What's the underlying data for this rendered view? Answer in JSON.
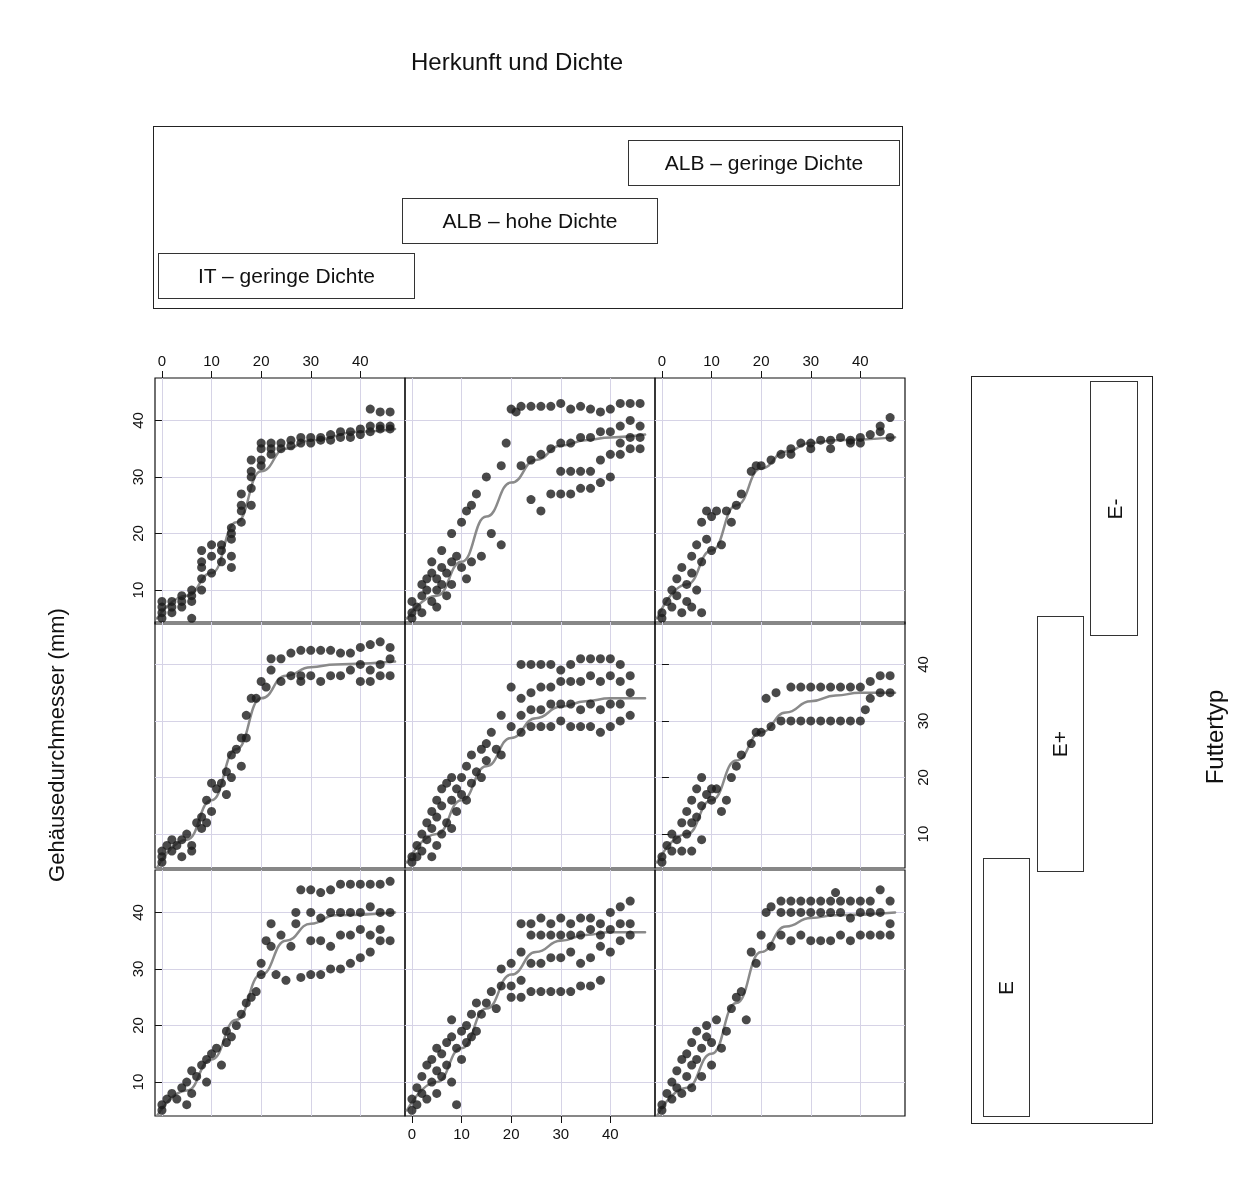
{
  "chart_data": [
    {
      "type": "other",
      "title": "Herkunft und Dichte",
      "annotations": [
        "IT – geringe Dichte",
        "ALB – hohe Dichte",
        "ALB – geringe Dichte"
      ]
    },
    {
      "type": "scatter",
      "xlim": [
        -1.4,
        49
      ],
      "ylim": [
        4,
        47.5
      ],
      "xticks": [
        0,
        10,
        20,
        30,
        40
      ],
      "yticks": [
        10,
        20,
        30,
        40
      ],
      "grid": true,
      "series": [
        {
          "type": "scatter",
          "marker": "circle",
          "color": "#1c1c1c",
          "x": [
            0,
            0,
            0,
            0,
            2,
            2,
            2,
            4,
            4,
            4,
            6,
            6,
            6,
            6,
            8,
            8,
            8,
            8,
            8,
            10,
            10,
            10,
            12,
            12,
            12,
            14,
            14,
            14,
            14,
            14,
            16,
            16,
            16,
            16,
            18,
            18,
            18,
            18,
            18,
            20,
            20,
            20,
            20,
            22,
            22,
            22,
            24,
            24,
            26,
            26,
            28,
            28,
            30,
            30,
            32,
            32,
            34,
            34,
            36,
            36,
            38,
            38,
            40,
            40,
            42,
            42,
            42,
            44,
            44,
            44,
            46,
            46,
            46
          ],
          "values": [
            5,
            6,
            7,
            8,
            6,
            7,
            8,
            8,
            9,
            7,
            9,
            10,
            5,
            8,
            10,
            12,
            14,
            15,
            17,
            16,
            18,
            13,
            17,
            18,
            15,
            19,
            20,
            14,
            16,
            21,
            22,
            24,
            25,
            27,
            25,
            28,
            31,
            30,
            33,
            35,
            33,
            32,
            36,
            36,
            34,
            35,
            36,
            35,
            36.5,
            35.5,
            37,
            36,
            37,
            36,
            37,
            36.5,
            37.5,
            36.5,
            38,
            37,
            38,
            37,
            38.5,
            37.5,
            38,
            39,
            42,
            39,
            41.5,
            38.5,
            39,
            41.5,
            38.5
          ]
        },
        {
          "type": "line",
          "marker": "none",
          "color": "#8a8a8a",
          "x": [
            -1,
            5,
            10,
            15,
            20,
            25,
            30,
            40,
            47
          ],
          "values": [
            5,
            9,
            13,
            22,
            31,
            35,
            36.5,
            38,
            38.5
          ]
        }
      ]
    },
    {
      "type": "scatter",
      "xlim": [
        -1.4,
        49
      ],
      "ylim": [
        4,
        47.5
      ],
      "xticks": [
        0,
        10,
        20,
        30,
        40
      ],
      "yticks": [
        10,
        20,
        30,
        40
      ],
      "grid": true,
      "tick_labels": false,
      "series": [
        {
          "type": "scatter",
          "marker": "circle",
          "color": "#1c1c1c",
          "x": [
            0,
            0,
            0,
            1,
            2,
            2,
            2,
            3,
            3,
            4,
            4,
            4,
            5,
            5,
            5,
            6,
            6,
            6,
            7,
            7,
            8,
            8,
            8,
            9,
            10,
            10,
            11,
            11,
            12,
            12,
            13,
            14,
            15,
            16,
            18,
            18,
            19,
            20,
            21,
            22,
            22,
            24,
            24,
            24,
            26,
            26,
            26,
            28,
            28,
            28,
            30,
            30,
            30,
            30,
            32,
            32,
            32,
            32,
            34,
            34,
            34,
            34,
            36,
            36,
            36,
            36,
            38,
            38,
            38,
            38,
            40,
            40,
            40,
            40,
            42,
            42,
            42,
            42,
            44,
            44,
            44,
            44,
            46,
            46,
            46,
            46
          ],
          "values": [
            5,
            6,
            8,
            7,
            9,
            11,
            6,
            12,
            10,
            8,
            13,
            15,
            7,
            10,
            12,
            14,
            11,
            17,
            13,
            9,
            15,
            11,
            20,
            16,
            14,
            22,
            12,
            24,
            25,
            15,
            27,
            16,
            30,
            20,
            18,
            32,
            36,
            42,
            41.5,
            42.5,
            32,
            42.5,
            33,
            26,
            42.5,
            34,
            24,
            42.5,
            35,
            27,
            43,
            36,
            31,
            27,
            42,
            36,
            31,
            27,
            42.5,
            37,
            31,
            28,
            42,
            37,
            31,
            28,
            41.5,
            38,
            33,
            29,
            42,
            38,
            34,
            30,
            43,
            39,
            36,
            34,
            43,
            40,
            37,
            35,
            43,
            39,
            37,
            35
          ]
        },
        {
          "type": "line",
          "marker": "none",
          "color": "#8a8a8a",
          "x": [
            -1,
            5,
            10,
            15,
            20,
            25,
            30,
            35,
            40,
            47
          ],
          "values": [
            5,
            9,
            15,
            23,
            29,
            33,
            35.5,
            36.5,
            37,
            37.5
          ]
        }
      ]
    },
    {
      "type": "scatter",
      "xlim": [
        -1.4,
        49
      ],
      "ylim": [
        4,
        47.5
      ],
      "xticks": [
        0,
        10,
        20,
        30,
        40
      ],
      "yticks": [
        10,
        20,
        30,
        40
      ],
      "grid": true,
      "tick_labels": "x",
      "series": [
        {
          "type": "scatter",
          "marker": "circle",
          "color": "#1c1c1c",
          "x": [
            0,
            0,
            1,
            2,
            2,
            3,
            3,
            4,
            4,
            5,
            5,
            6,
            6,
            6,
            7,
            7,
            8,
            8,
            8,
            9,
            9,
            10,
            10,
            11,
            12,
            13,
            14,
            15,
            16,
            18,
            19,
            20,
            22,
            24,
            26,
            26,
            28,
            30,
            30,
            32,
            34,
            34,
            36,
            38,
            38,
            40,
            40,
            42,
            44,
            44,
            46,
            46
          ],
          "values": [
            6,
            5,
            8,
            10,
            7,
            12,
            9,
            6,
            14,
            11,
            8,
            16,
            13,
            7,
            18,
            10,
            22,
            15,
            6,
            24,
            19,
            23,
            17,
            24,
            18,
            24,
            22,
            25,
            27,
            31,
            32,
            32,
            33,
            34,
            35,
            34,
            36,
            36,
            35,
            36.5,
            36.5,
            35,
            37,
            36.5,
            36,
            37,
            36,
            37.5,
            38,
            39,
            40.5,
            37
          ]
        },
        {
          "type": "line",
          "marker": "none",
          "color": "#8a8a8a",
          "x": [
            -1,
            5,
            10,
            15,
            20,
            25,
            30,
            35,
            47
          ],
          "values": [
            5,
            11,
            17,
            25,
            31.5,
            34.5,
            36,
            36.5,
            37
          ]
        }
      ]
    },
    {
      "type": "scatter",
      "xlim": [
        -1.4,
        49
      ],
      "ylim": [
        4,
        47.5
      ],
      "xticks": [
        0,
        10,
        20,
        30,
        40
      ],
      "yticks": [
        10,
        20,
        30,
        40
      ],
      "grid": true,
      "tick_labels": false,
      "ylabel": "Gehäusedurchmesser (mm)",
      "series": [
        {
          "type": "scatter",
          "marker": "circle",
          "color": "#1c1c1c",
          "x": [
            0,
            0,
            0,
            1,
            2,
            2,
            3,
            4,
            4,
            5,
            6,
            6,
            7,
            8,
            8,
            9,
            9,
            10,
            10,
            11,
            12,
            13,
            13,
            14,
            14,
            15,
            16,
            16,
            17,
            17,
            18,
            19,
            20,
            21,
            22,
            22,
            24,
            24,
            26,
            26,
            28,
            28,
            28,
            30,
            30,
            32,
            32,
            34,
            34,
            36,
            36,
            38,
            38,
            40,
            40,
            40,
            42,
            42,
            42,
            44,
            44,
            44,
            46,
            46,
            46
          ],
          "values": [
            5,
            6,
            7,
            8,
            9,
            7,
            8,
            9,
            6,
            10,
            8,
            7,
            12,
            11,
            13,
            16,
            12,
            14,
            19,
            18,
            19,
            21,
            17,
            24,
            20,
            25,
            27,
            22,
            27,
            31,
            34,
            34,
            37,
            36,
            41,
            39,
            41,
            37,
            42,
            38,
            42.5,
            38,
            37,
            42.5,
            38,
            42.5,
            37,
            42.5,
            38,
            42,
            38,
            42,
            39,
            43,
            40,
            37,
            43.5,
            39,
            37,
            44,
            40,
            38,
            43,
            41,
            38
          ]
        },
        {
          "type": "line",
          "marker": "none",
          "color": "#8a8a8a",
          "x": [
            -1,
            5,
            10,
            15,
            20,
            25,
            30,
            35,
            47
          ],
          "values": [
            4,
            9,
            16,
            25,
            34,
            38,
            39.5,
            40,
            40.5
          ]
        }
      ]
    },
    {
      "type": "scatter",
      "xlim": [
        -1.4,
        49
      ],
      "ylim": [
        4,
        47.5
      ],
      "xticks": [
        0,
        10,
        20,
        30,
        40
      ],
      "yticks": [
        10,
        20,
        30,
        40
      ],
      "grid": true,
      "tick_labels": false,
      "series": [
        {
          "type": "scatter",
          "marker": "circle",
          "color": "#1c1c1c",
          "x": [
            0,
            0,
            1,
            1,
            2,
            2,
            3,
            3,
            4,
            4,
            4,
            5,
            5,
            5,
            6,
            6,
            6,
            7,
            7,
            8,
            8,
            8,
            9,
            9,
            10,
            10,
            11,
            11,
            12,
            12,
            13,
            14,
            14,
            15,
            15,
            16,
            17,
            18,
            18,
            20,
            20,
            22,
            22,
            22,
            22,
            24,
            24,
            24,
            24,
            26,
            26,
            26,
            26,
            28,
            28,
            28,
            28,
            30,
            30,
            30,
            30,
            32,
            32,
            32,
            32,
            34,
            34,
            34,
            34,
            36,
            36,
            36,
            36,
            38,
            38,
            38,
            38,
            40,
            40,
            40,
            40,
            42,
            42,
            42,
            42,
            44,
            44,
            44
          ],
          "values": [
            5,
            6,
            8,
            6,
            10,
            7,
            12,
            9,
            11,
            14,
            6,
            16,
            13,
            8,
            18,
            15,
            10,
            19,
            12,
            20,
            16,
            11,
            18,
            14,
            20,
            17,
            22,
            16,
            24,
            19,
            21,
            25,
            20,
            26,
            23,
            28,
            25,
            24,
            31,
            36,
            29,
            40,
            34,
            31,
            28,
            40,
            35,
            32,
            29,
            40,
            36,
            32,
            29,
            40,
            36,
            33,
            29,
            39,
            37,
            33,
            30,
            40,
            37,
            33,
            29,
            41,
            37,
            32,
            29,
            41,
            38,
            33,
            29,
            41,
            37,
            32,
            28,
            41,
            38,
            33,
            29,
            40,
            37,
            33,
            30,
            38,
            35,
            31
          ]
        },
        {
          "type": "line",
          "marker": "none",
          "color": "#8a8a8a",
          "x": [
            -1,
            5,
            10,
            15,
            20,
            25,
            30,
            35,
            40,
            47
          ],
          "values": [
            5,
            10,
            16,
            22,
            27,
            30.5,
            32.5,
            33.5,
            34,
            34
          ]
        }
      ]
    },
    {
      "type": "scatter",
      "xlim": [
        -1.4,
        49
      ],
      "ylim": [
        4,
        47.5
      ],
      "xticks": [
        0,
        10,
        20,
        30,
        40
      ],
      "yticks": [
        10,
        20,
        30,
        40
      ],
      "grid": true,
      "tick_labels": "y",
      "series": [
        {
          "type": "scatter",
          "marker": "circle",
          "color": "#1c1c1c",
          "x": [
            0,
            0,
            1,
            2,
            2,
            3,
            4,
            4,
            5,
            5,
            6,
            6,
            6,
            7,
            7,
            8,
            8,
            8,
            9,
            10,
            10,
            11,
            12,
            13,
            14,
            15,
            16,
            18,
            19,
            20,
            21,
            22,
            23,
            24,
            26,
            26,
            28,
            28,
            30,
            30,
            32,
            32,
            34,
            34,
            36,
            36,
            38,
            38,
            40,
            40,
            41,
            42,
            42,
            44,
            44,
            46,
            46
          ],
          "values": [
            5,
            6,
            8,
            10,
            7,
            9,
            12,
            7,
            14,
            10,
            16,
            12,
            7,
            18,
            13,
            20,
            15,
            9,
            17,
            18,
            16,
            18,
            14,
            16,
            20,
            22,
            24,
            26,
            28,
            28,
            34,
            29,
            35,
            30,
            36,
            30,
            36,
            30,
            36,
            30,
            36,
            30,
            36,
            30,
            36,
            30,
            36,
            30,
            36,
            30,
            32,
            37,
            34,
            38,
            35,
            38,
            35
          ]
        },
        {
          "type": "line",
          "marker": "none",
          "color": "#8a8a8a",
          "x": [
            -1,
            5,
            10,
            15,
            20,
            25,
            30,
            35,
            40,
            47
          ],
          "values": [
            5,
            10,
            16,
            23,
            28,
            31.5,
            33.5,
            34.5,
            35,
            35
          ]
        }
      ]
    },
    {
      "type": "scatter",
      "xlim": [
        -1.4,
        49
      ],
      "ylim": [
        4,
        47.5
      ],
      "xticks": [
        0,
        10,
        20,
        30,
        40
      ],
      "yticks": [
        10,
        20,
        30,
        40
      ],
      "grid": true,
      "tick_labels": "y",
      "series": [
        {
          "type": "scatter",
          "marker": "circle",
          "color": "#1c1c1c",
          "x": [
            0,
            0,
            1,
            2,
            3,
            4,
            5,
            5,
            6,
            6,
            7,
            8,
            9,
            9,
            10,
            11,
            12,
            13,
            13,
            14,
            15,
            16,
            17,
            18,
            19,
            20,
            20,
            21,
            22,
            22,
            23,
            24,
            25,
            26,
            27,
            27,
            28,
            28,
            30,
            30,
            30,
            30,
            32,
            32,
            32,
            32,
            34,
            34,
            34,
            34,
            36,
            36,
            36,
            36,
            38,
            38,
            38,
            38,
            40,
            40,
            40,
            40,
            42,
            42,
            42,
            42,
            44,
            44,
            44,
            44,
            46,
            46,
            46
          ],
          "values": [
            5,
            6,
            7,
            8,
            7,
            9,
            10,
            6,
            12,
            8,
            11,
            13,
            14,
            10,
            15,
            16,
            13,
            17,
            19,
            18,
            20,
            22,
            24,
            25,
            26,
            29,
            31,
            35,
            34,
            38,
            29,
            36,
            28,
            34,
            40,
            38,
            44,
            28.5,
            44,
            40,
            35,
            29,
            43.5,
            39,
            35,
            29,
            44,
            40,
            34,
            30,
            45,
            40,
            36,
            30,
            45,
            40,
            36,
            31,
            45,
            40,
            37,
            32,
            45,
            41,
            36,
            33,
            45,
            40,
            37,
            35,
            45.5,
            40,
            35
          ]
        },
        {
          "type": "line",
          "marker": "none",
          "color": "#8a8a8a",
          "x": [
            -1,
            5,
            10,
            15,
            20,
            25,
            30,
            35,
            47
          ],
          "values": [
            4,
            8.5,
            14,
            21,
            29,
            35,
            38,
            39.5,
            40
          ]
        }
      ]
    },
    {
      "type": "scatter",
      "xlim": [
        -1.4,
        49
      ],
      "ylim": [
        4,
        47.5
      ],
      "xticks": [
        0,
        10,
        20,
        30,
        40
      ],
      "yticks": [
        10,
        20,
        30,
        40
      ],
      "grid": true,
      "tick_labels": "x",
      "series": [
        {
          "type": "scatter",
          "marker": "circle",
          "color": "#1c1c1c",
          "x": [
            0,
            0,
            1,
            1,
            2,
            2,
            3,
            3,
            4,
            4,
            5,
            5,
            5,
            6,
            6,
            7,
            7,
            8,
            8,
            8,
            9,
            9,
            10,
            10,
            11,
            11,
            12,
            12,
            13,
            13,
            14,
            15,
            16,
            17,
            18,
            18,
            20,
            20,
            20,
            22,
            22,
            22,
            22,
            24,
            24,
            24,
            24,
            26,
            26,
            26,
            26,
            28,
            28,
            28,
            28,
            30,
            30,
            30,
            30,
            32,
            32,
            32,
            32,
            34,
            34,
            34,
            34,
            36,
            36,
            36,
            36,
            38,
            38,
            38,
            38,
            40,
            40,
            40,
            42,
            42,
            42,
            44,
            44,
            44
          ],
          "values": [
            5,
            7,
            9,
            6,
            11,
            8,
            13,
            7,
            10,
            14,
            12,
            16,
            8,
            15,
            11,
            17,
            13,
            18,
            21,
            10,
            16,
            6,
            19,
            14,
            20,
            17,
            22,
            18,
            24,
            19,
            22,
            24,
            26,
            23,
            30,
            27,
            31,
            27,
            25,
            38,
            33,
            28,
            25,
            38,
            36,
            31,
            26,
            39,
            36,
            31,
            26,
            38,
            36,
            32,
            26,
            39,
            36,
            32,
            26,
            38,
            36,
            33,
            26,
            39,
            36,
            31,
            27,
            39,
            37,
            32,
            27,
            38,
            36,
            34,
            28,
            40,
            37,
            33,
            41,
            38,
            35,
            42,
            38,
            36
          ]
        },
        {
          "type": "line",
          "marker": "none",
          "color": "#8a8a8a",
          "x": [
            -1,
            5,
            10,
            15,
            20,
            25,
            30,
            35,
            40,
            47
          ],
          "values": [
            5,
            10,
            16,
            23,
            29,
            33,
            35,
            36,
            36.5,
            36.5
          ]
        }
      ]
    },
    {
      "type": "scatter",
      "xlim": [
        -1.4,
        49
      ],
      "ylim": [
        4,
        47.5
      ],
      "xticks": [
        0,
        10,
        20,
        30,
        40
      ],
      "yticks": [
        10,
        20,
        30,
        40
      ],
      "grid": true,
      "tick_labels": false,
      "series": [
        {
          "type": "scatter",
          "marker": "circle",
          "color": "#1c1c1c",
          "x": [
            0,
            0,
            1,
            2,
            2,
            3,
            3,
            4,
            4,
            5,
            5,
            6,
            6,
            6,
            7,
            7,
            8,
            8,
            9,
            9,
            10,
            10,
            11,
            12,
            13,
            14,
            15,
            16,
            17,
            18,
            19,
            20,
            21,
            22,
            22,
            24,
            24,
            24,
            26,
            26,
            26,
            28,
            28,
            28,
            30,
            30,
            30,
            32,
            32,
            32,
            34,
            34,
            34,
            35,
            36,
            36,
            36,
            38,
            38,
            38,
            40,
            40,
            40,
            42,
            42,
            42,
            44,
            44,
            44,
            46,
            46,
            46
          ],
          "values": [
            5,
            6,
            8,
            10,
            7,
            12,
            9,
            14,
            8,
            11,
            15,
            13,
            17,
            9,
            19,
            14,
            16,
            11,
            20,
            18,
            17,
            13,
            21,
            16,
            19,
            23,
            25,
            26,
            21,
            33,
            31,
            36,
            40,
            34,
            41,
            42,
            40,
            36,
            42,
            40,
            35,
            42,
            40,
            36,
            42,
            40,
            35,
            42,
            40,
            35,
            42,
            40,
            35,
            43.5,
            42,
            40,
            36,
            42,
            39,
            35,
            42,
            40,
            36,
            42,
            40,
            36,
            44,
            40,
            36,
            42,
            38,
            36
          ]
        },
        {
          "type": "line",
          "marker": "none",
          "color": "#8a8a8a",
          "x": [
            -1,
            5,
            10,
            15,
            20,
            25,
            30,
            35,
            47
          ],
          "values": [
            4,
            9,
            15,
            24,
            33,
            37.5,
            39,
            39.5,
            40
          ]
        }
      ]
    },
    {
      "type": "other",
      "title": "Futtertyp",
      "annotations": [
        "E",
        "E+",
        "E-"
      ]
    }
  ]
}
